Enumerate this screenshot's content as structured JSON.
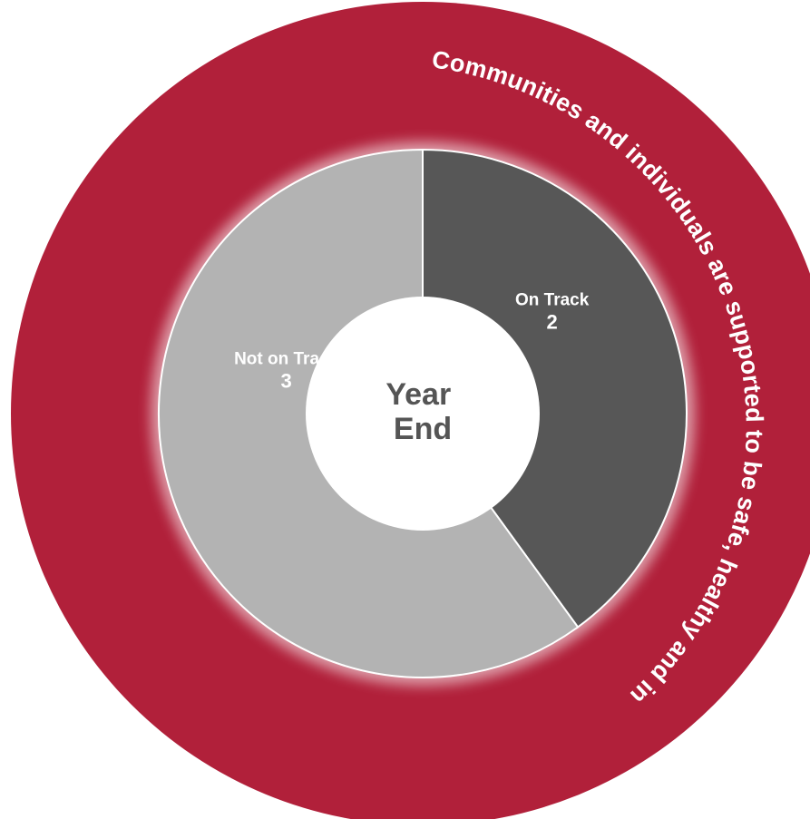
{
  "chart_data": {
    "type": "pie",
    "ring_title": "Communities and individuals are supported to be safe, healthy and independent",
    "center_label": [
      "Year",
      "End"
    ],
    "categories": [
      "On Track",
      "Not on Track"
    ],
    "values": [
      2,
      3
    ],
    "colors": {
      "On Track": "#575757",
      "Not on Track": "#b3b3b3",
      "outer_ring": "#b1203a",
      "center": "#ffffff",
      "separator": "#ffffff"
    }
  }
}
